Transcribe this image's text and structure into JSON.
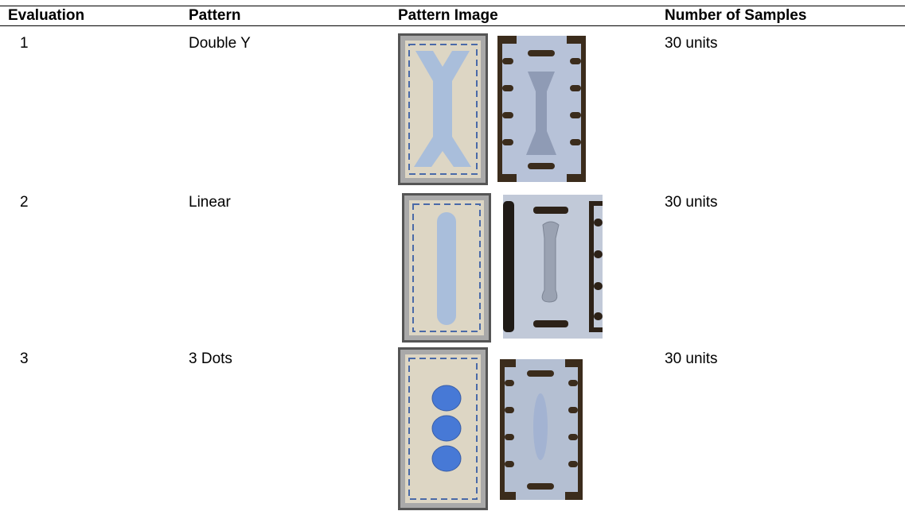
{
  "table": {
    "header": [
      "Evaluation",
      "Pattern",
      "Pattern Image",
      "Number of Samples"
    ],
    "rows": [
      [
        "1",
        "Double Y",
        "30 units"
      ],
      [
        "2",
        "Linear",
        "30 units"
      ],
      [
        "3",
        "3 Dots",
        "30 units"
      ]
    ]
  }
}
